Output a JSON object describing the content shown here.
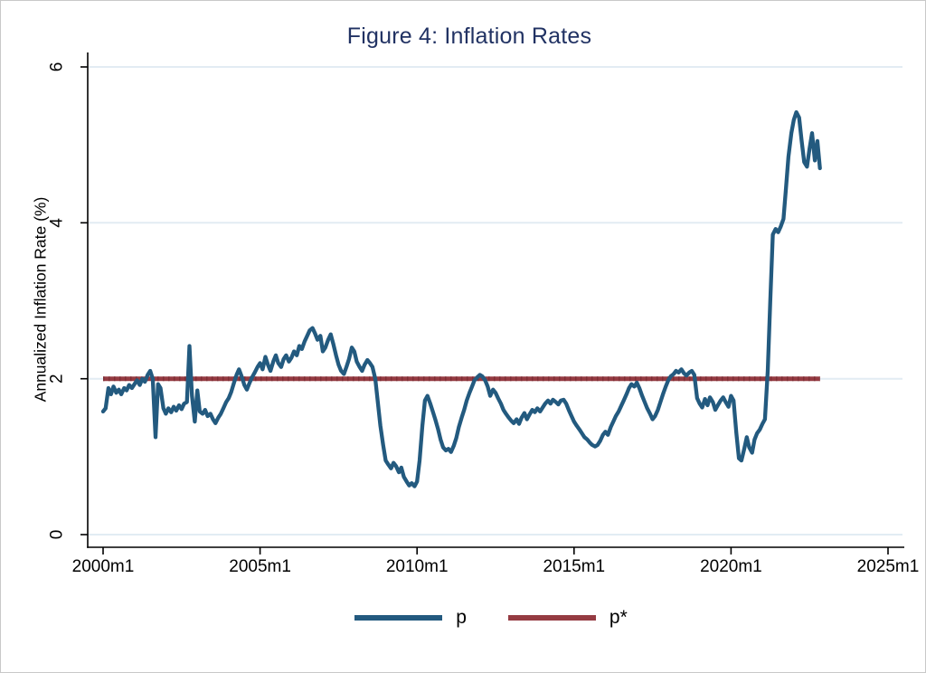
{
  "figure": {
    "title": "Figure 4: Inflation Rates",
    "y_axis_title": "Annualized Inflation Rate (%)"
  },
  "colors": {
    "title_text": "#213263",
    "p_line": "#235a7f",
    "p_star_line": "#953b42",
    "p_star_dash_overlay": "#7e2f36",
    "gridline": "#e2ecf3",
    "axis": "#000000",
    "background": "#ffffff",
    "frame_border": "#c9c9c9"
  },
  "legend": {
    "position": "bottom-center",
    "items": [
      {
        "label": "p"
      },
      {
        "label": "p*"
      }
    ]
  },
  "chart_data": {
    "type": "line",
    "title": "Figure 4: Inflation Rates",
    "xlabel": "",
    "ylabel": "Annualized Inflation Rate (%)",
    "x_unit": "decimal year, monthly data; 2000.0 = 2000m1",
    "xlim": [
      1999.5,
      2025.5
    ],
    "ylim": [
      0,
      6
    ],
    "y_ticks": [
      0,
      2,
      4,
      6
    ],
    "x_ticks": [
      {
        "value": 2000,
        "label": "2000m1"
      },
      {
        "value": 2005,
        "label": "2005m1"
      },
      {
        "value": 2010,
        "label": "2010m1"
      },
      {
        "value": 2015,
        "label": "2015m1"
      },
      {
        "value": 2020,
        "label": "2020m1"
      },
      {
        "value": 2025,
        "label": "2025m1"
      }
    ],
    "grid": "horizontal",
    "legend_position": "bottom-center",
    "series": [
      {
        "name": "p",
        "color": "#235a7f",
        "points": [
          [
            2000.0,
            1.58
          ],
          [
            2000.08,
            1.62
          ],
          [
            2000.17,
            1.88
          ],
          [
            2000.25,
            1.8
          ],
          [
            2000.33,
            1.9
          ],
          [
            2000.42,
            1.82
          ],
          [
            2000.5,
            1.86
          ],
          [
            2000.58,
            1.8
          ],
          [
            2000.67,
            1.88
          ],
          [
            2000.75,
            1.85
          ],
          [
            2000.83,
            1.92
          ],
          [
            2000.92,
            1.88
          ],
          [
            2001.0,
            1.93
          ],
          [
            2001.08,
            1.98
          ],
          [
            2001.17,
            1.92
          ],
          [
            2001.25,
            2.0
          ],
          [
            2001.33,
            1.96
          ],
          [
            2001.42,
            2.05
          ],
          [
            2001.5,
            2.1
          ],
          [
            2001.58,
            2.0
          ],
          [
            2001.67,
            1.25
          ],
          [
            2001.75,
            1.93
          ],
          [
            2001.83,
            1.88
          ],
          [
            2001.92,
            1.62
          ],
          [
            2002.0,
            1.55
          ],
          [
            2002.08,
            1.62
          ],
          [
            2002.17,
            1.57
          ],
          [
            2002.25,
            1.64
          ],
          [
            2002.33,
            1.59
          ],
          [
            2002.42,
            1.66
          ],
          [
            2002.5,
            1.61
          ],
          [
            2002.58,
            1.68
          ],
          [
            2002.67,
            1.7
          ],
          [
            2002.75,
            2.42
          ],
          [
            2002.83,
            1.78
          ],
          [
            2002.92,
            1.45
          ],
          [
            2003.0,
            1.85
          ],
          [
            2003.08,
            1.58
          ],
          [
            2003.17,
            1.55
          ],
          [
            2003.25,
            1.6
          ],
          [
            2003.33,
            1.52
          ],
          [
            2003.42,
            1.55
          ],
          [
            2003.5,
            1.48
          ],
          [
            2003.58,
            1.43
          ],
          [
            2003.67,
            1.5
          ],
          [
            2003.75,
            1.55
          ],
          [
            2003.83,
            1.62
          ],
          [
            2003.92,
            1.7
          ],
          [
            2004.0,
            1.75
          ],
          [
            2004.08,
            1.83
          ],
          [
            2004.17,
            1.95
          ],
          [
            2004.25,
            2.05
          ],
          [
            2004.33,
            2.12
          ],
          [
            2004.42,
            2.02
          ],
          [
            2004.5,
            1.92
          ],
          [
            2004.58,
            1.86
          ],
          [
            2004.67,
            1.95
          ],
          [
            2004.75,
            2.02
          ],
          [
            2004.83,
            2.08
          ],
          [
            2004.92,
            2.15
          ],
          [
            2005.0,
            2.2
          ],
          [
            2005.08,
            2.12
          ],
          [
            2005.17,
            2.28
          ],
          [
            2005.25,
            2.18
          ],
          [
            2005.33,
            2.1
          ],
          [
            2005.42,
            2.22
          ],
          [
            2005.5,
            2.3
          ],
          [
            2005.58,
            2.2
          ],
          [
            2005.67,
            2.15
          ],
          [
            2005.75,
            2.25
          ],
          [
            2005.83,
            2.3
          ],
          [
            2005.92,
            2.22
          ],
          [
            2006.0,
            2.27
          ],
          [
            2006.08,
            2.35
          ],
          [
            2006.17,
            2.3
          ],
          [
            2006.25,
            2.42
          ],
          [
            2006.33,
            2.38
          ],
          [
            2006.42,
            2.48
          ],
          [
            2006.5,
            2.55
          ],
          [
            2006.58,
            2.62
          ],
          [
            2006.67,
            2.65
          ],
          [
            2006.75,
            2.58
          ],
          [
            2006.83,
            2.5
          ],
          [
            2006.92,
            2.55
          ],
          [
            2007.0,
            2.35
          ],
          [
            2007.08,
            2.4
          ],
          [
            2007.17,
            2.5
          ],
          [
            2007.25,
            2.57
          ],
          [
            2007.33,
            2.45
          ],
          [
            2007.42,
            2.3
          ],
          [
            2007.5,
            2.18
          ],
          [
            2007.58,
            2.1
          ],
          [
            2007.67,
            2.06
          ],
          [
            2007.75,
            2.15
          ],
          [
            2007.83,
            2.25
          ],
          [
            2007.92,
            2.4
          ],
          [
            2008.0,
            2.35
          ],
          [
            2008.08,
            2.22
          ],
          [
            2008.17,
            2.15
          ],
          [
            2008.25,
            2.1
          ],
          [
            2008.33,
            2.18
          ],
          [
            2008.42,
            2.24
          ],
          [
            2008.5,
            2.2
          ],
          [
            2008.58,
            2.15
          ],
          [
            2008.67,
            2.0
          ],
          [
            2008.75,
            1.7
          ],
          [
            2008.83,
            1.4
          ],
          [
            2008.92,
            1.15
          ],
          [
            2009.0,
            0.95
          ],
          [
            2009.08,
            0.9
          ],
          [
            2009.17,
            0.85
          ],
          [
            2009.25,
            0.92
          ],
          [
            2009.33,
            0.88
          ],
          [
            2009.42,
            0.8
          ],
          [
            2009.5,
            0.86
          ],
          [
            2009.58,
            0.74
          ],
          [
            2009.67,
            0.68
          ],
          [
            2009.75,
            0.63
          ],
          [
            2009.83,
            0.66
          ],
          [
            2009.92,
            0.62
          ],
          [
            2010.0,
            0.68
          ],
          [
            2010.08,
            0.95
          ],
          [
            2010.17,
            1.4
          ],
          [
            2010.25,
            1.72
          ],
          [
            2010.33,
            1.78
          ],
          [
            2010.42,
            1.68
          ],
          [
            2010.5,
            1.58
          ],
          [
            2010.58,
            1.48
          ],
          [
            2010.67,
            1.35
          ],
          [
            2010.75,
            1.22
          ],
          [
            2010.83,
            1.12
          ],
          [
            2010.92,
            1.08
          ],
          [
            2011.0,
            1.1
          ],
          [
            2011.08,
            1.06
          ],
          [
            2011.17,
            1.14
          ],
          [
            2011.25,
            1.24
          ],
          [
            2011.33,
            1.38
          ],
          [
            2011.42,
            1.5
          ],
          [
            2011.5,
            1.6
          ],
          [
            2011.58,
            1.72
          ],
          [
            2011.67,
            1.82
          ],
          [
            2011.75,
            1.9
          ],
          [
            2011.83,
            1.98
          ],
          [
            2011.92,
            2.02
          ],
          [
            2012.0,
            2.05
          ],
          [
            2012.08,
            2.03
          ],
          [
            2012.17,
            1.98
          ],
          [
            2012.25,
            1.9
          ],
          [
            2012.33,
            1.78
          ],
          [
            2012.42,
            1.86
          ],
          [
            2012.5,
            1.82
          ],
          [
            2012.58,
            1.75
          ],
          [
            2012.67,
            1.68
          ],
          [
            2012.75,
            1.6
          ],
          [
            2012.83,
            1.55
          ],
          [
            2012.92,
            1.5
          ],
          [
            2013.0,
            1.46
          ],
          [
            2013.08,
            1.43
          ],
          [
            2013.17,
            1.48
          ],
          [
            2013.25,
            1.42
          ],
          [
            2013.33,
            1.5
          ],
          [
            2013.42,
            1.56
          ],
          [
            2013.5,
            1.48
          ],
          [
            2013.58,
            1.54
          ],
          [
            2013.67,
            1.6
          ],
          [
            2013.75,
            1.57
          ],
          [
            2013.83,
            1.62
          ],
          [
            2013.92,
            1.58
          ],
          [
            2014.0,
            1.63
          ],
          [
            2014.08,
            1.68
          ],
          [
            2014.17,
            1.72
          ],
          [
            2014.25,
            1.68
          ],
          [
            2014.33,
            1.73
          ],
          [
            2014.42,
            1.7
          ],
          [
            2014.5,
            1.67
          ],
          [
            2014.58,
            1.72
          ],
          [
            2014.67,
            1.73
          ],
          [
            2014.75,
            1.68
          ],
          [
            2014.83,
            1.6
          ],
          [
            2014.92,
            1.52
          ],
          [
            2015.0,
            1.45
          ],
          [
            2015.08,
            1.4
          ],
          [
            2015.17,
            1.35
          ],
          [
            2015.25,
            1.3
          ],
          [
            2015.33,
            1.25
          ],
          [
            2015.42,
            1.22
          ],
          [
            2015.5,
            1.18
          ],
          [
            2015.58,
            1.15
          ],
          [
            2015.67,
            1.13
          ],
          [
            2015.75,
            1.15
          ],
          [
            2015.83,
            1.2
          ],
          [
            2015.92,
            1.28
          ],
          [
            2016.0,
            1.32
          ],
          [
            2016.08,
            1.28
          ],
          [
            2016.17,
            1.38
          ],
          [
            2016.25,
            1.45
          ],
          [
            2016.33,
            1.52
          ],
          [
            2016.42,
            1.58
          ],
          [
            2016.5,
            1.65
          ],
          [
            2016.58,
            1.72
          ],
          [
            2016.67,
            1.8
          ],
          [
            2016.75,
            1.88
          ],
          [
            2016.83,
            1.93
          ],
          [
            2016.92,
            1.9
          ],
          [
            2017.0,
            1.95
          ],
          [
            2017.08,
            1.88
          ],
          [
            2017.17,
            1.78
          ],
          [
            2017.25,
            1.7
          ],
          [
            2017.33,
            1.62
          ],
          [
            2017.42,
            1.55
          ],
          [
            2017.5,
            1.48
          ],
          [
            2017.58,
            1.52
          ],
          [
            2017.67,
            1.6
          ],
          [
            2017.75,
            1.7
          ],
          [
            2017.83,
            1.8
          ],
          [
            2017.92,
            1.9
          ],
          [
            2018.0,
            1.98
          ],
          [
            2018.08,
            2.03
          ],
          [
            2018.17,
            2.06
          ],
          [
            2018.25,
            2.1
          ],
          [
            2018.33,
            2.08
          ],
          [
            2018.42,
            2.12
          ],
          [
            2018.5,
            2.07
          ],
          [
            2018.58,
            2.04
          ],
          [
            2018.67,
            2.08
          ],
          [
            2018.75,
            2.1
          ],
          [
            2018.83,
            2.05
          ],
          [
            2018.92,
            1.75
          ],
          [
            2019.0,
            1.68
          ],
          [
            2019.08,
            1.63
          ],
          [
            2019.17,
            1.74
          ],
          [
            2019.25,
            1.66
          ],
          [
            2019.33,
            1.76
          ],
          [
            2019.42,
            1.7
          ],
          [
            2019.5,
            1.6
          ],
          [
            2019.58,
            1.66
          ],
          [
            2019.67,
            1.72
          ],
          [
            2019.75,
            1.76
          ],
          [
            2019.83,
            1.7
          ],
          [
            2019.92,
            1.64
          ],
          [
            2020.0,
            1.78
          ],
          [
            2020.08,
            1.72
          ],
          [
            2020.17,
            1.3
          ],
          [
            2020.25,
            0.98
          ],
          [
            2020.33,
            0.95
          ],
          [
            2020.42,
            1.1
          ],
          [
            2020.5,
            1.25
          ],
          [
            2020.58,
            1.12
          ],
          [
            2020.67,
            1.05
          ],
          [
            2020.75,
            1.22
          ],
          [
            2020.83,
            1.3
          ],
          [
            2020.92,
            1.35
          ],
          [
            2021.0,
            1.42
          ],
          [
            2021.08,
            1.48
          ],
          [
            2021.17,
            2.1
          ],
          [
            2021.25,
            3.0
          ],
          [
            2021.33,
            3.85
          ],
          [
            2021.42,
            3.92
          ],
          [
            2021.5,
            3.88
          ],
          [
            2021.58,
            3.95
          ],
          [
            2021.67,
            4.05
          ],
          [
            2021.75,
            4.45
          ],
          [
            2021.83,
            4.85
          ],
          [
            2021.92,
            5.15
          ],
          [
            2022.0,
            5.32
          ],
          [
            2022.08,
            5.42
          ],
          [
            2022.17,
            5.35
          ],
          [
            2022.25,
            5.05
          ],
          [
            2022.33,
            4.78
          ],
          [
            2022.42,
            4.72
          ],
          [
            2022.5,
            4.95
          ],
          [
            2022.58,
            5.15
          ],
          [
            2022.67,
            4.8
          ],
          [
            2022.75,
            5.05
          ],
          [
            2022.83,
            4.7
          ]
        ]
      },
      {
        "name": "p*",
        "color": "#953b42",
        "note": "constant 2% reference line",
        "points": [
          [
            2000.0,
            2.0
          ],
          [
            2022.83,
            2.0
          ]
        ]
      }
    ]
  }
}
